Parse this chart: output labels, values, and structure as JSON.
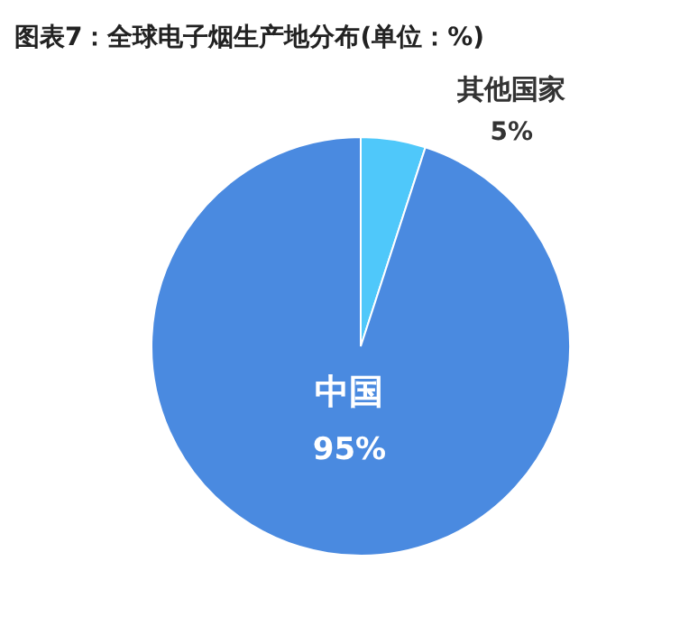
{
  "chart_data": {
    "type": "pie",
    "title": "图表7：全球电子烟生产地分布(单位：%)",
    "categories": [
      "其他国家",
      "中国"
    ],
    "values": [
      5,
      95
    ],
    "colors": [
      "#4fc8fa",
      "#4a8ae0"
    ],
    "value_labels": [
      "5%",
      "95%"
    ],
    "legend": false
  }
}
